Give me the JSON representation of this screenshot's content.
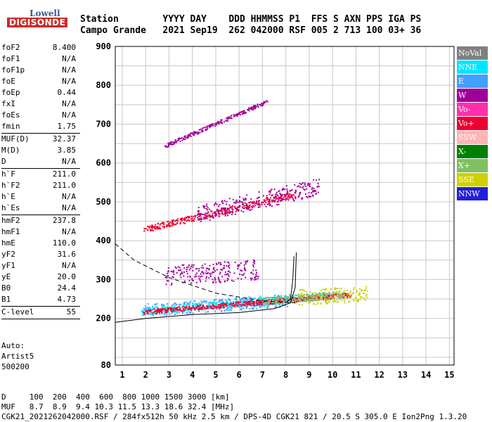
{
  "logo": {
    "top": "Lowell",
    "bottom": "DIGISONDE"
  },
  "header": {
    "line1": "Station        YYYY DAY    DDD HHMMSS P1  FFS S AXN PPS IGA PS",
    "line2": "Campo Grande   2021 Sep19  262 042000 RSF 005 2 713 100 03+ 36"
  },
  "params": {
    "group1": [
      {
        "label": "foF2",
        "value": "8.400"
      },
      {
        "label": "foF1",
        "value": "N/A"
      },
      {
        "label": "foF1p",
        "value": "N/A"
      },
      {
        "label": "foE",
        "value": "N/A"
      },
      {
        "label": "foEp",
        "value": "0.44"
      },
      {
        "label": "fxI",
        "value": "N/A"
      },
      {
        "label": "foEs",
        "value": "N/A"
      },
      {
        "label": "fmin",
        "value": "1.75"
      }
    ],
    "group2": [
      {
        "label": "MUF(D)",
        "value": "32.37"
      },
      {
        "label": "M(D)",
        "value": "3.85"
      },
      {
        "label": "D",
        "value": "N/A"
      }
    ],
    "group3": [
      {
        "label": "h`F",
        "value": "211.0"
      },
      {
        "label": "h`F2",
        "value": "211.0"
      },
      {
        "label": "h`E",
        "value": "N/A"
      },
      {
        "label": "h`Es",
        "value": "N/A"
      }
    ],
    "group4": [
      {
        "label": "hmF2",
        "value": "237.8"
      },
      {
        "label": "hmF1",
        "value": "N/A"
      },
      {
        "label": "hmE",
        "value": "110.0"
      },
      {
        "label": "yF2",
        "value": "31.6"
      },
      {
        "label": "yF1",
        "value": "N/A"
      },
      {
        "label": "yE",
        "value": "20.0"
      },
      {
        "label": "B0",
        "value": "24.4"
      },
      {
        "label": "B1",
        "value": "4.73"
      }
    ],
    "group5": [
      {
        "label": "C-level",
        "value": "55"
      }
    ]
  },
  "auto": {
    "line1": "Auto:",
    "line2": "Artist5",
    "line3": "500200"
  },
  "legend": [
    {
      "label": "NoVal",
      "color": "#808080"
    },
    {
      "label": "NNE",
      "color": "#00e5ff"
    },
    {
      "label": "E",
      "color": "#3fa0ff"
    },
    {
      "label": "W",
      "color": "#a0009a"
    },
    {
      "label": "Vo-",
      "color": "#ff2fae"
    },
    {
      "label": "Vo+",
      "color": "#ee0030"
    },
    {
      "label": "SSW",
      "color": "#ffb4b4"
    },
    {
      "label": "X-",
      "color": "#008000"
    },
    {
      "label": "X+",
      "color": "#80c060"
    },
    {
      "label": "SSE",
      "color": "#d0d000"
    },
    {
      "label": "NNW",
      "color": "#2020d8"
    }
  ],
  "footer": {
    "line1": "D     100  200  400  600  800 1000 1500 3000 [km]",
    "line2": "MUF   8.7  8.9  9.4 10.3 11.5 13.3 18.6 32.4 [MHz]",
    "line3": "CGK21_2021262042000.RSF / 284fx512h 50 kHz 2.5 km / DPS-4D CGK21 821 / 20.5 S 305.0 E Ion2Png 1.3.20"
  },
  "chart_data": {
    "type": "scatter",
    "xlim": [
      0.7,
      15.2
    ],
    "ylim": [
      80,
      900
    ],
    "x_ticks": [
      1,
      2,
      3,
      4,
      5,
      6,
      7,
      8,
      9,
      10,
      11,
      12,
      13,
      14,
      15
    ],
    "y_ticks": [
      80,
      200,
      300,
      400,
      500,
      600,
      700,
      800,
      900
    ],
    "grid": true,
    "series": [
      {
        "name": "E",
        "color": "#3fa0ff",
        "x_range": [
          1.8,
          8.2
        ],
        "h_start": 222,
        "h_end": 248,
        "spread": 16
      },
      {
        "name": "NNE",
        "color": "#00e5ff",
        "x_range": [
          1.8,
          9.8
        ],
        "h_start": 220,
        "h_end": 260,
        "spread": 10
      },
      {
        "name": "Vo+",
        "color": "#ee0030",
        "x_range": [
          1.9,
          10.8
        ],
        "h_start": 218,
        "h_end": 262,
        "spread": 6
      },
      {
        "name": "W",
        "color": "#a0009a",
        "x_range": [
          2.8,
          6.8
        ],
        "h_start": 310,
        "h_end": 328,
        "spread": 26
      },
      {
        "name": "Vo+",
        "color": "#ee0030",
        "x_range": [
          1.9,
          8.4
        ],
        "h_start": 430,
        "h_end": 520,
        "spread": 8
      },
      {
        "name": "W",
        "color": "#a0009a",
        "x_range": [
          4.2,
          9.4
        ],
        "h_start": 470,
        "h_end": 540,
        "spread": 22
      },
      {
        "name": "W",
        "color": "#a0009a",
        "x_range": [
          2.8,
          7.2
        ],
        "h_start": 645,
        "h_end": 760,
        "spread": 5
      },
      {
        "name": "SSE",
        "color": "#d0d000",
        "x_range": [
          8.5,
          11.5
        ],
        "h_start": 255,
        "h_end": 265,
        "spread": 20
      },
      {
        "name": "X+",
        "color": "#80c060",
        "x_range": [
          7.0,
          10.5
        ],
        "h_start": 245,
        "h_end": 262,
        "spread": 10
      }
    ],
    "curves": [
      {
        "name": "profile",
        "style": "solid",
        "points": [
          [
            0.7,
            190
          ],
          [
            2,
            200
          ],
          [
            4,
            210
          ],
          [
            6,
            215
          ],
          [
            7.5,
            225
          ],
          [
            8.2,
            240
          ],
          [
            8.4,
            280
          ],
          [
            8.45,
            370
          ]
        ]
      },
      {
        "name": "profile",
        "style": "solid",
        "points": [
          [
            8.0,
            240
          ],
          [
            8.2,
            250
          ],
          [
            8.3,
            300
          ],
          [
            8.35,
            360
          ]
        ]
      },
      {
        "name": "profile",
        "style": "dashed",
        "points": [
          [
            0.7,
            392
          ],
          [
            1.5,
            350
          ],
          [
            3,
            305
          ],
          [
            5,
            265
          ],
          [
            7,
            245
          ],
          [
            8.4,
            240
          ]
        ]
      }
    ]
  }
}
